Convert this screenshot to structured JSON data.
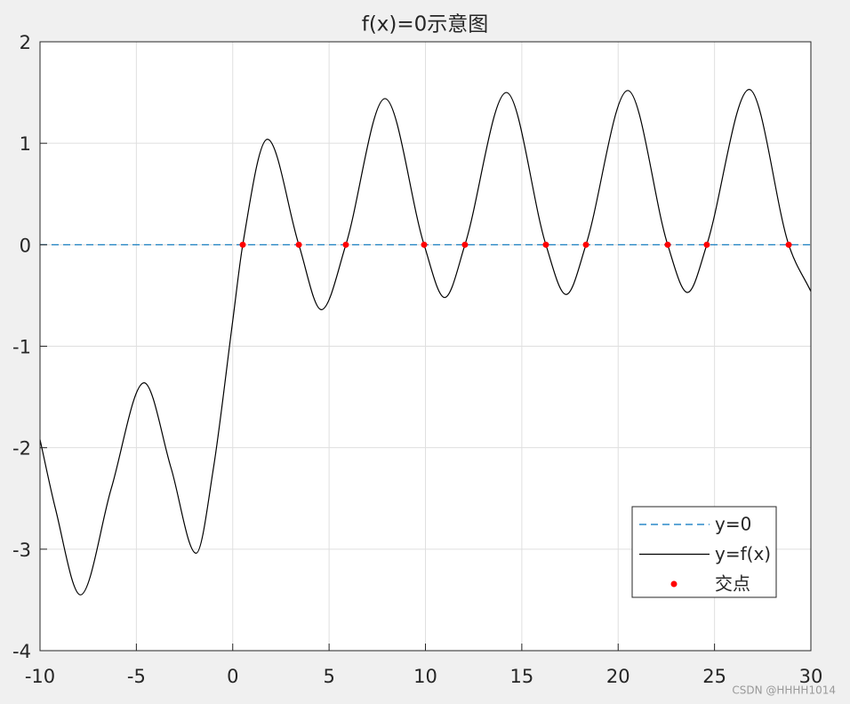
{
  "chart_data": {
    "type": "line",
    "title": "f(x)=0示意图",
    "xlim": [
      -10,
      30
    ],
    "xticks": [
      -10,
      -5,
      0,
      5,
      10,
      15,
      20,
      25,
      30
    ],
    "ylim": [
      -4,
      2
    ],
    "yticks": [
      -4,
      -3,
      -2,
      -1,
      0,
      1,
      2
    ],
    "grid": true,
    "legend": "lower right",
    "series": [
      {
        "name": "y=0",
        "color": "#0072bd",
        "style": "dashed",
        "x": [
          -10,
          30
        ],
        "values": [
          0,
          0
        ]
      },
      {
        "name": "y=f(x)",
        "color": "#000000",
        "style": "solid",
        "x": [
          -10,
          -9.2,
          -7.9,
          -6.3,
          -4.6,
          -3.2,
          -1.9,
          -1.0,
          0,
          0.52,
          1.8,
          3.43,
          4.6,
          5.87,
          7.9,
          9.93,
          11.0,
          12.05,
          14.2,
          16.25,
          17.3,
          18.33,
          20.5,
          22.57,
          23.6,
          24.6,
          26.8,
          28.85,
          30
        ],
        "values": [
          -1.92,
          -2.6,
          -3.45,
          -2.4,
          -1.36,
          -2.2,
          -3.04,
          -2.2,
          -0.75,
          0,
          1.04,
          0,
          -0.64,
          0,
          1.44,
          0,
          -0.52,
          0,
          1.5,
          0,
          -0.49,
          0,
          1.52,
          0,
          -0.47,
          0,
          1.53,
          0,
          -0.46
        ]
      },
      {
        "name": "交点",
        "color": "#ff0000",
        "style": "markers",
        "x": [
          0.52,
          3.43,
          5.87,
          9.93,
          12.05,
          16.25,
          18.33,
          22.57,
          24.6,
          28.85
        ],
        "values": [
          0,
          0,
          0,
          0,
          0,
          0,
          0,
          0,
          0,
          0
        ]
      }
    ],
    "watermark": "CSDN @HHHH1014"
  }
}
